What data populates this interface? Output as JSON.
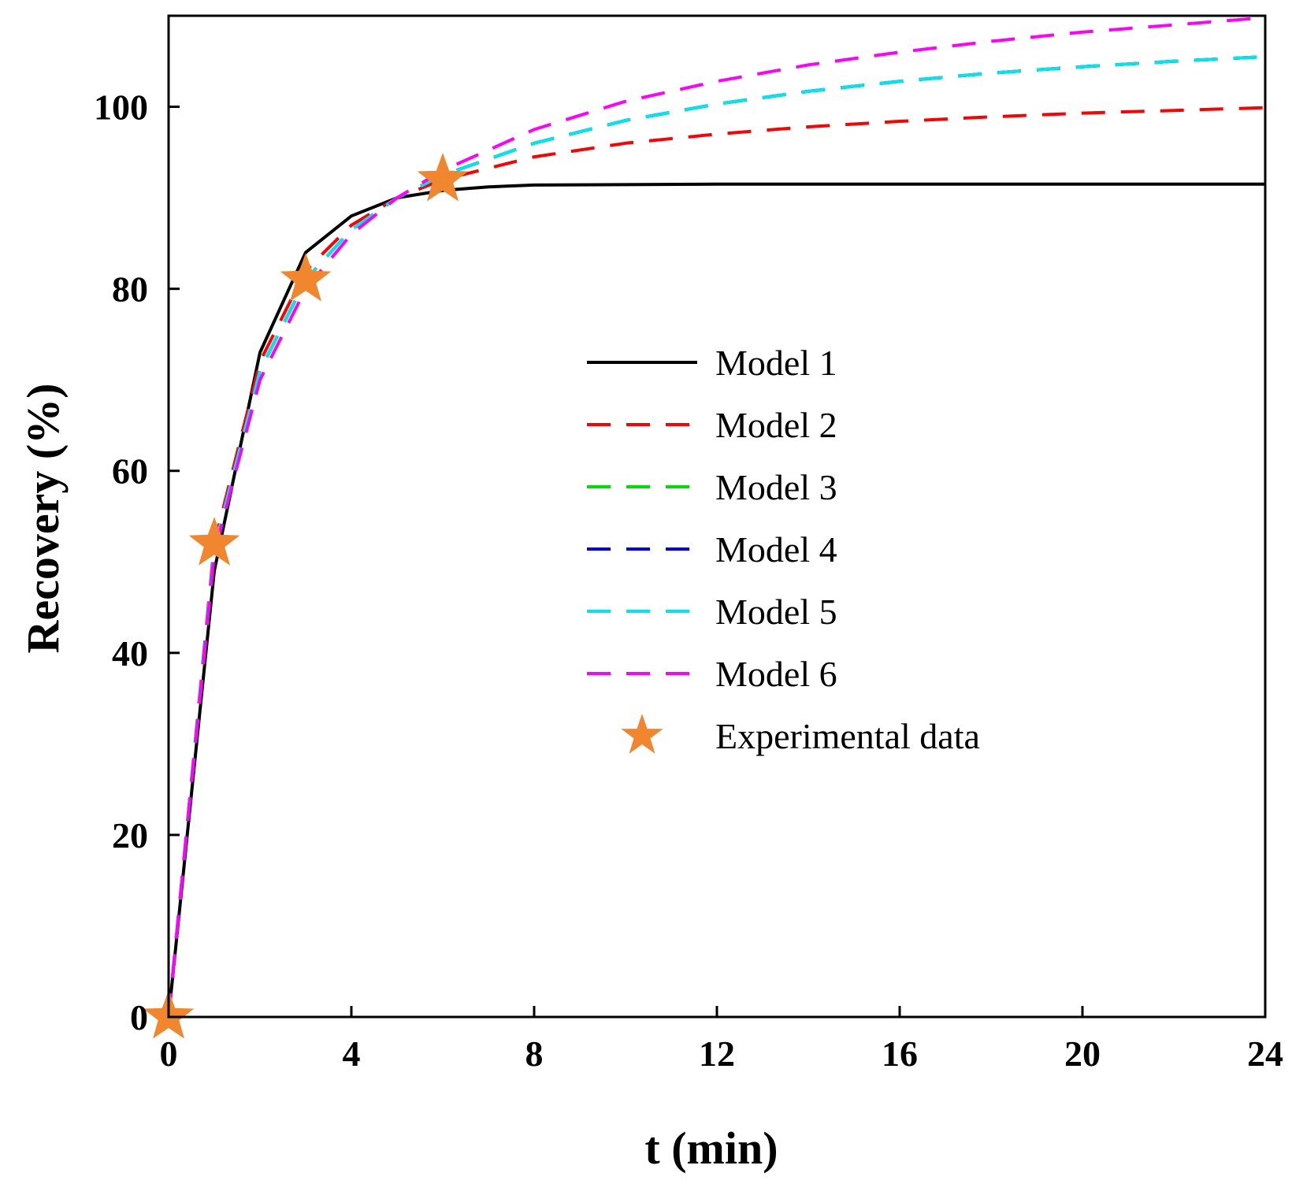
{
  "chart_data": {
    "type": "line",
    "title": "",
    "xlabel": "t (min)",
    "ylabel": "Recovery (%)",
    "xlim": [
      0,
      24
    ],
    "ylim": [
      0,
      110
    ],
    "xticks": [
      0,
      4,
      8,
      12,
      16,
      20,
      24
    ],
    "yticks": [
      0,
      20,
      40,
      60,
      80,
      100
    ],
    "xtick_labels": [
      "0",
      "4",
      "8",
      "12",
      "16",
      "20",
      "24"
    ],
    "ytick_labels": [
      "0",
      "20",
      "40",
      "60",
      "80",
      "100"
    ],
    "grid": false,
    "legend_position": "center-right",
    "series": [
      {
        "name": "Model 1",
        "color": "#000000",
        "style": "solid",
        "x": [
          0,
          1,
          2,
          3,
          4,
          5,
          6,
          7,
          8,
          12,
          16,
          20,
          24
        ],
        "y": [
          0,
          49,
          73,
          84,
          88,
          90,
          90.8,
          91.2,
          91.4,
          91.5,
          91.5,
          91.5,
          91.5
        ]
      },
      {
        "name": "Model 2",
        "color": "#ff0000",
        "style": "dashed",
        "x": [
          0,
          1,
          2,
          3,
          4,
          5,
          6,
          8,
          10,
          12,
          14,
          16,
          18,
          20,
          22,
          24
        ],
        "y": [
          0,
          52,
          72,
          82,
          87,
          90,
          92,
          94.5,
          96,
          97,
          97.8,
          98.4,
          98.9,
          99.3,
          99.6,
          99.9
        ]
      },
      {
        "name": "Model 3",
        "color": "#00dd00",
        "style": "dashed",
        "x": [
          0,
          1,
          2,
          3,
          4,
          5,
          6,
          8,
          10,
          12,
          14,
          16,
          18,
          20,
          22,
          24
        ],
        "y": [
          0,
          51.5,
          71,
          81,
          86.5,
          90,
          92.5,
          96,
          98.5,
          100.3,
          101.7,
          102.8,
          103.7,
          104.4,
          105,
          105.5
        ]
      },
      {
        "name": "Model 4",
        "color": "#0000ff",
        "style": "dashed",
        "x": [
          0,
          1,
          2,
          3,
          4,
          5,
          6,
          8,
          10,
          12,
          14,
          16,
          18,
          20,
          22,
          24
        ],
        "y": [
          0,
          51.5,
          71,
          81,
          86.5,
          90,
          92.5,
          96,
          98.5,
          100.3,
          101.7,
          102.8,
          103.7,
          104.4,
          105,
          105.5
        ]
      },
      {
        "name": "Model 5",
        "color": "#00e5ee",
        "style": "dashed",
        "x": [
          0,
          1,
          2,
          3,
          4,
          5,
          6,
          8,
          10,
          12,
          14,
          16,
          18,
          20,
          22,
          24
        ],
        "y": [
          0,
          51.5,
          71,
          81,
          86.5,
          90,
          92.5,
          96,
          98.5,
          100.3,
          101.7,
          102.8,
          103.7,
          104.4,
          105,
          105.5
        ]
      },
      {
        "name": "Model 6",
        "color": "#ff00ff",
        "style": "dashed",
        "x": [
          0,
          1,
          2,
          3,
          4,
          5,
          6,
          8,
          10,
          12,
          14,
          16,
          18,
          20,
          22,
          24
        ],
        "y": [
          0,
          51,
          70,
          80,
          86,
          90,
          93,
          97.5,
          100.6,
          102.8,
          104.6,
          106,
          107.2,
          108.2,
          109,
          109.8
        ]
      }
    ],
    "experimental": {
      "name": "Experimental data",
      "color": "#f0862e",
      "x": [
        0,
        1,
        3,
        6
      ],
      "y": [
        0,
        52,
        81,
        92
      ]
    }
  }
}
